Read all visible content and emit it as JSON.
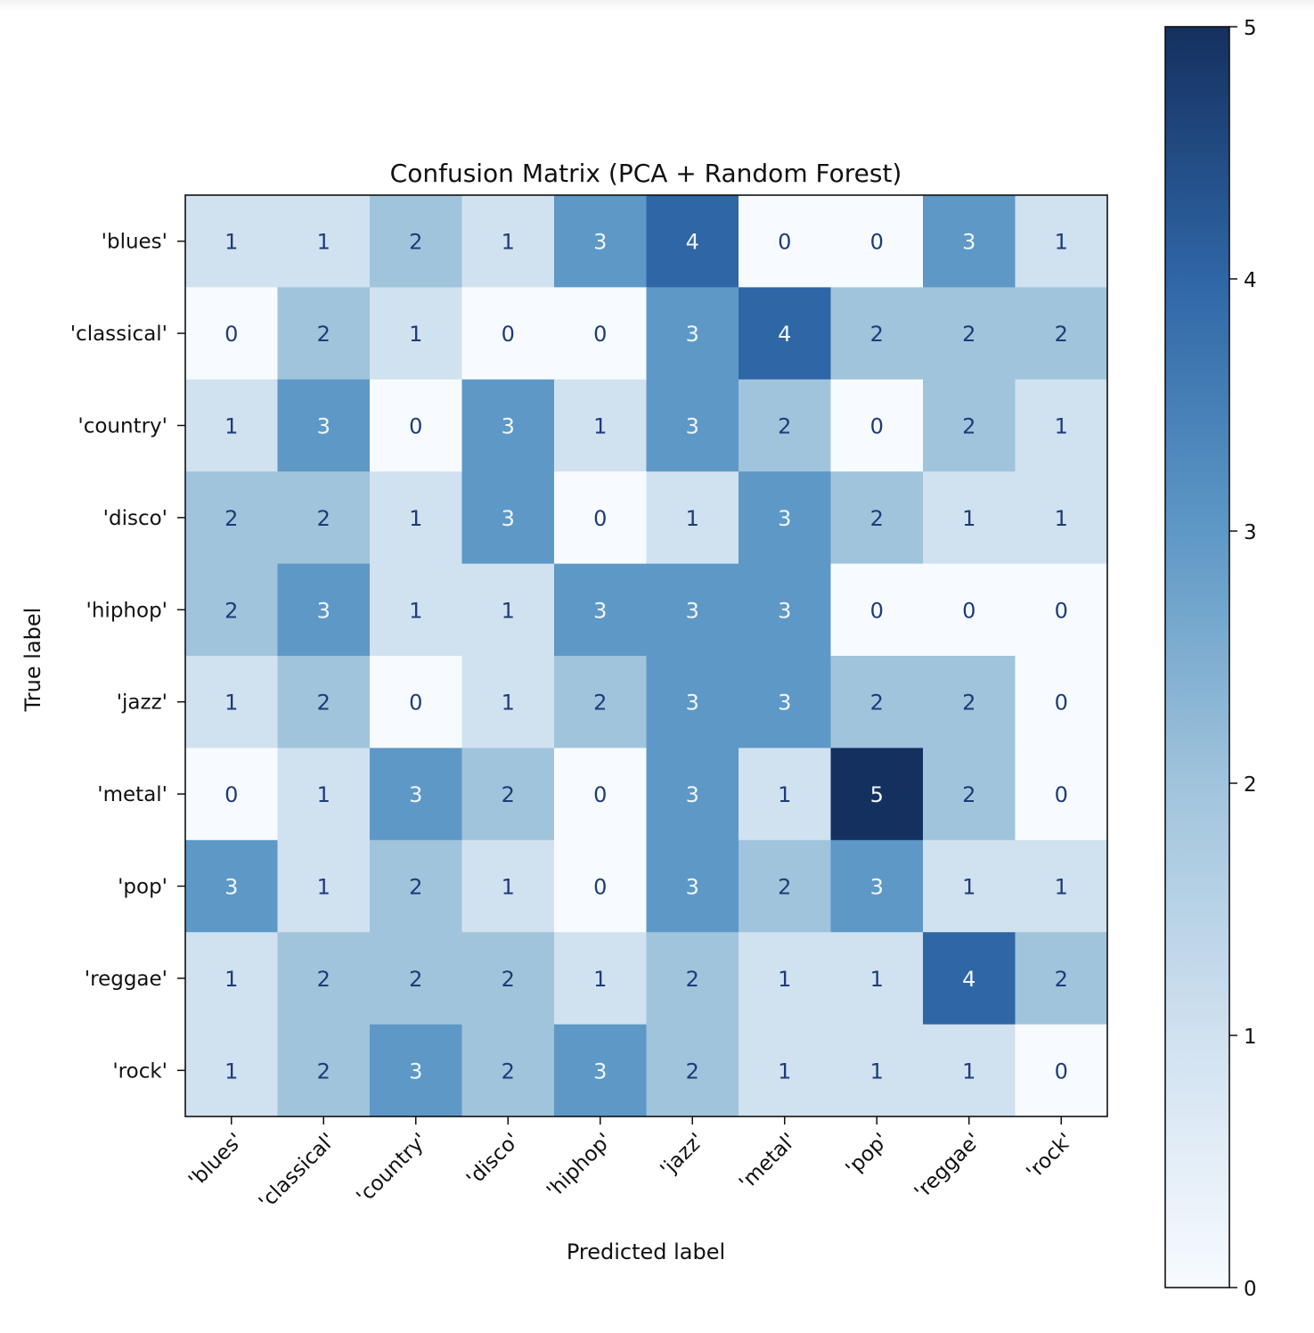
{
  "chart_data": {
    "type": "heatmap",
    "title": "Confusion Matrix (PCA + Random Forest)",
    "xlabel": "Predicted label",
    "ylabel": "True label",
    "x_categories": [
      "'blues'",
      "'classical'",
      "'country'",
      "'disco'",
      "'hiphop'",
      "'jazz'",
      "'metal'",
      "'pop'",
      "'reggae'",
      "'rock'"
    ],
    "y_categories": [
      "'blues'",
      "'classical'",
      "'country'",
      "'disco'",
      "'hiphop'",
      "'jazz'",
      "'metal'",
      "'pop'",
      "'reggae'",
      "'rock'"
    ],
    "values": [
      [
        1,
        1,
        2,
        1,
        3,
        4,
        0,
        0,
        3,
        1
      ],
      [
        0,
        2,
        1,
        0,
        0,
        3,
        4,
        2,
        2,
        2
      ],
      [
        1,
        3,
        0,
        3,
        1,
        3,
        2,
        0,
        2,
        1
      ],
      [
        2,
        2,
        1,
        3,
        0,
        1,
        3,
        2,
        1,
        1
      ],
      [
        2,
        3,
        1,
        1,
        3,
        3,
        3,
        0,
        0,
        0
      ],
      [
        1,
        2,
        0,
        1,
        2,
        3,
        3,
        2,
        2,
        0
      ],
      [
        0,
        1,
        3,
        2,
        0,
        3,
        1,
        5,
        2,
        0
      ],
      [
        3,
        1,
        2,
        1,
        0,
        3,
        2,
        3,
        1,
        1
      ],
      [
        1,
        2,
        2,
        2,
        1,
        2,
        1,
        1,
        4,
        2
      ],
      [
        1,
        2,
        3,
        2,
        3,
        2,
        1,
        1,
        1,
        0
      ]
    ],
    "colormap": "Blues",
    "color_stops": [
      "#f7fbff",
      "#d0e1f0",
      "#a0c4dc",
      "#5e98c6",
      "#2f66a6",
      "#14305f"
    ],
    "colorbar": {
      "range": [
        0,
        5
      ],
      "ticks": [
        "0",
        "1",
        "2",
        "3",
        "4",
        "5"
      ]
    },
    "text_color_dark": "#1d3c78",
    "text_color_light": "#f0f6fc",
    "grid": false
  }
}
